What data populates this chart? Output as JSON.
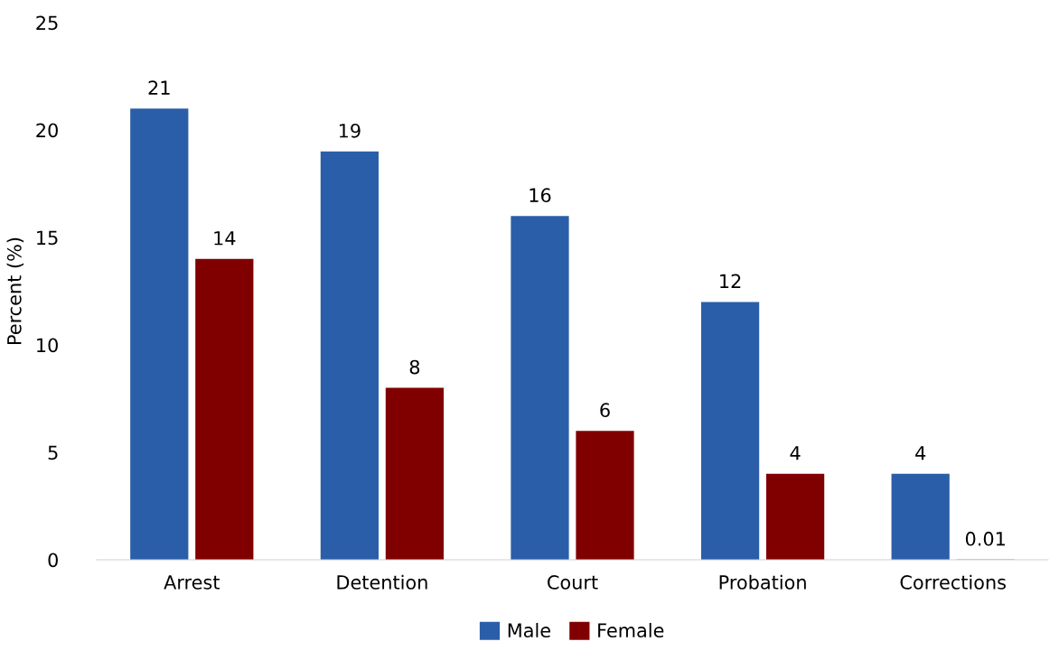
{
  "chart_data": {
    "type": "bar",
    "ylabel": "Percent (%)",
    "categories": [
      "Arrest",
      "Detention",
      "Court",
      "Probation",
      "Corrections"
    ],
    "series": [
      {
        "name": "Male",
        "color": "#2b5ea9",
        "values": [
          21,
          19,
          16,
          12,
          4
        ]
      },
      {
        "name": "Female",
        "color": "#800000",
        "values": [
          14,
          8,
          6,
          4,
          0.01
        ]
      }
    ],
    "ylim": [
      0,
      25
    ],
    "yticks": [
      0,
      5,
      10,
      15,
      20,
      25
    ],
    "grid": false,
    "legend": "bottom",
    "data_labels": true
  }
}
